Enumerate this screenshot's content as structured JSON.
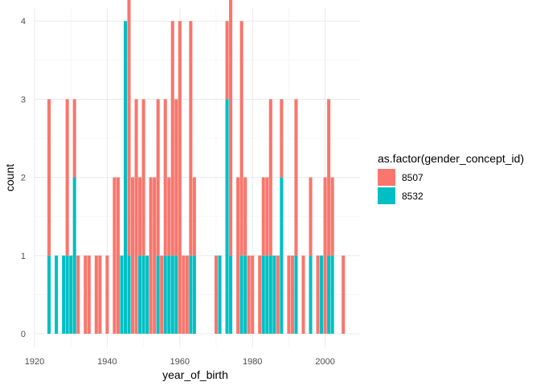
{
  "chart_data": {
    "type": "bar",
    "stacked": true,
    "xlabel": "year_of_birth",
    "ylabel": "count",
    "xlim": [
      1920,
      2007
    ],
    "ylim": [
      0,
      4
    ],
    "x_ticks": [
      "1920",
      "1940",
      "1960",
      "1980",
      "2000"
    ],
    "y_ticks": [
      "0",
      "1",
      "2",
      "3",
      "4"
    ],
    "grid": true,
    "legend_position": "right",
    "legend_title": "as.factor(gender_concept_id)",
    "series": [
      {
        "name": "8507",
        "color": "#F8766D",
        "points": [
          [
            1924,
            2
          ],
          [
            1929,
            2
          ],
          [
            1931,
            1
          ],
          [
            1932,
            1
          ],
          [
            1934,
            1
          ],
          [
            1935,
            1
          ],
          [
            1937,
            1
          ],
          [
            1938,
            1
          ],
          [
            1940,
            1
          ],
          [
            1942,
            2
          ],
          [
            1943,
            2
          ],
          [
            1945,
            0
          ],
          [
            1946,
            4
          ],
          [
            1947,
            2
          ],
          [
            1948,
            3
          ],
          [
            1949,
            1
          ],
          [
            1950,
            2
          ],
          [
            1952,
            2
          ],
          [
            1953,
            2
          ],
          [
            1954,
            2
          ],
          [
            1955,
            1
          ],
          [
            1956,
            2
          ],
          [
            1957,
            1
          ],
          [
            1958,
            3
          ],
          [
            1959,
            2
          ],
          [
            1960,
            4
          ],
          [
            1961,
            1
          ],
          [
            1962,
            1
          ],
          [
            1963,
            3
          ],
          [
            1964,
            1
          ],
          [
            1970,
            1
          ],
          [
            1973,
            1
          ],
          [
            1974,
            4
          ],
          [
            1976,
            2
          ],
          [
            1977,
            3
          ],
          [
            1978,
            1
          ],
          [
            1979,
            1
          ],
          [
            1980,
            1
          ],
          [
            1982,
            1
          ],
          [
            1983,
            1
          ],
          [
            1984,
            1
          ],
          [
            1985,
            2
          ],
          [
            1987,
            1
          ],
          [
            1988,
            1
          ],
          [
            1990,
            1
          ],
          [
            1991,
            1
          ],
          [
            1992,
            2
          ],
          [
            1994,
            1
          ],
          [
            1996,
            1
          ],
          [
            1998,
            1
          ],
          [
            2000,
            2
          ],
          [
            2001,
            2
          ],
          [
            2002,
            1
          ],
          [
            2005,
            1
          ]
        ]
      },
      {
        "name": "8532",
        "color": "#00BFC4",
        "points": [
          [
            1924,
            1
          ],
          [
            1926,
            1
          ],
          [
            1928,
            1
          ],
          [
            1929,
            1
          ],
          [
            1930,
            1
          ],
          [
            1931,
            2
          ],
          [
            1944,
            1
          ],
          [
            1945,
            4
          ],
          [
            1946,
            1
          ],
          [
            1949,
            1
          ],
          [
            1950,
            1
          ],
          [
            1951,
            1
          ],
          [
            1954,
            1
          ],
          [
            1956,
            1
          ],
          [
            1957,
            1
          ],
          [
            1958,
            1
          ],
          [
            1959,
            1
          ],
          [
            1963,
            1
          ],
          [
            1964,
            1
          ],
          [
            1971,
            1
          ],
          [
            1973,
            3
          ],
          [
            1974,
            1
          ],
          [
            1977,
            1
          ],
          [
            1978,
            1
          ],
          [
            1983,
            1
          ],
          [
            1984,
            1
          ],
          [
            1985,
            1
          ],
          [
            1986,
            1
          ],
          [
            1988,
            2
          ],
          [
            1992,
            1
          ],
          [
            1996,
            1
          ],
          [
            1999,
            1
          ],
          [
            2001,
            1
          ],
          [
            2002,
            1
          ]
        ]
      }
    ]
  }
}
